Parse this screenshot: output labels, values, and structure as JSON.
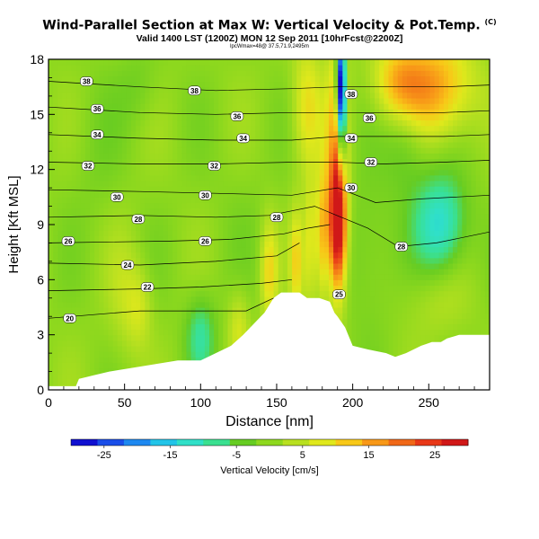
{
  "header": {
    "title": "Wind-Parallel Section at Max W: Vertical Velocity & Pot.Temp.",
    "copyright": "(C)",
    "subtitle": "Valid 1400 LST (1200Z) MON 12 Sep 2011 [10hrFcst@2200Z]",
    "detail": "lpcWmax=48@ 37.5,71.9,2495m"
  },
  "colors": {
    "low": "#1a2ee0",
    "mid": "#66cc22",
    "high": "#e8101c",
    "terrain": "#ffffff"
  },
  "chart_data": {
    "type": "heatmap",
    "title": "Wind-Parallel Section at Max W: Vertical Velocity & Pot.Temp.",
    "xlabel": "Distance [nm]",
    "ylabel": "Height [Kft MSL]",
    "xlim": [
      0,
      290
    ],
    "ylim": [
      0,
      18
    ],
    "xticks": [
      0,
      50,
      100,
      150,
      200,
      250
    ],
    "yticks": [
      0,
      3,
      6,
      9,
      12,
      15,
      18
    ],
    "colorbar": {
      "label": "Vertical Velocity [cm/s]",
      "min": -30,
      "max": 30,
      "ticks": [
        -25,
        -15,
        -5,
        5,
        15,
        25
      ],
      "stops": [
        "#1010d0",
        "#1a4ee8",
        "#1e88f0",
        "#22c4e8",
        "#30e0c8",
        "#3ae090",
        "#66cc22",
        "#8ed81e",
        "#b8e020",
        "#e0e81c",
        "#f8c818",
        "#f89818",
        "#f06818",
        "#e83818",
        "#d01818"
      ]
    },
    "terrain": [
      [
        0,
        0.2
      ],
      [
        18,
        0.2
      ],
      [
        20,
        0.6
      ],
      [
        30,
        0.8
      ],
      [
        40,
        1.0
      ],
      [
        55,
        1.2
      ],
      [
        70,
        1.4
      ],
      [
        85,
        1.6
      ],
      [
        100,
        1.6
      ],
      [
        110,
        2.0
      ],
      [
        120,
        2.4
      ],
      [
        128,
        3.0
      ],
      [
        135,
        3.6
      ],
      [
        142,
        4.2
      ],
      [
        148,
        5.0
      ],
      [
        153,
        5.3
      ],
      [
        165,
        5.3
      ],
      [
        170,
        5.0
      ],
      [
        178,
        5.0
      ],
      [
        185,
        4.8
      ],
      [
        188,
        4.2
      ],
      [
        190,
        4.0
      ],
      [
        195,
        3.4
      ],
      [
        200,
        2.4
      ],
      [
        210,
        2.2
      ],
      [
        222,
        2.0
      ],
      [
        228,
        1.8
      ],
      [
        235,
        2.0
      ],
      [
        245,
        2.4
      ],
      [
        252,
        2.6
      ],
      [
        258,
        2.6
      ],
      [
        262,
        2.8
      ],
      [
        270,
        3.0
      ],
      [
        280,
        3.0
      ],
      [
        290,
        3.0
      ]
    ],
    "velocity_features": [
      {
        "x": 190,
        "y": 9.0,
        "sx": 4,
        "sy": 2.5,
        "w": 32
      },
      {
        "x": 190,
        "y": 13.5,
        "sx": 5,
        "sy": 4.5,
        "w": 14
      },
      {
        "x": 192,
        "y": 16.8,
        "sx": 2.2,
        "sy": 1.8,
        "w": -32
      },
      {
        "x": 193,
        "y": 14.5,
        "sx": 2.0,
        "sy": 2.2,
        "w": -20
      },
      {
        "x": 180,
        "y": 8.5,
        "sx": 3,
        "sy": 2.5,
        "w": 14
      },
      {
        "x": 172,
        "y": 8.0,
        "sx": 3,
        "sy": 2.5,
        "w": 9
      },
      {
        "x": 163,
        "y": 7.0,
        "sx": 3,
        "sy": 2.0,
        "w": 11
      },
      {
        "x": 170,
        "y": 15.5,
        "sx": 7,
        "sy": 2.5,
        "w": 10
      },
      {
        "x": 255,
        "y": 16.5,
        "sx": 18,
        "sy": 2.0,
        "w": 16
      },
      {
        "x": 230,
        "y": 16.8,
        "sx": 12,
        "sy": 1.5,
        "w": 12
      },
      {
        "x": 258,
        "y": 9.0,
        "sx": 12,
        "sy": 2.0,
        "w": -14
      },
      {
        "x": 235,
        "y": 13.5,
        "sx": 10,
        "sy": 2.0,
        "w": -6
      },
      {
        "x": 210,
        "y": 7.5,
        "sx": 12,
        "sy": 3.0,
        "w": -4
      },
      {
        "x": 100,
        "y": 3.0,
        "sx": 7,
        "sy": 1.6,
        "w": -9
      },
      {
        "x": 125,
        "y": 3.4,
        "sx": 5,
        "sy": 1.5,
        "w": 7
      },
      {
        "x": 145,
        "y": 6.5,
        "sx": 4,
        "sy": 2.0,
        "w": 11
      },
      {
        "x": 60,
        "y": 4.5,
        "sx": 6,
        "sy": 1.5,
        "w": 6
      },
      {
        "x": 50,
        "y": 5.0,
        "sx": 8,
        "sy": 2.5,
        "w": 4
      },
      {
        "x": 60,
        "y": 16.5,
        "sx": 10,
        "sy": 1.5,
        "w": -3
      },
      {
        "x": 30,
        "y": 13.0,
        "sx": 12,
        "sy": 3.0,
        "w": -2
      },
      {
        "x": 255,
        "y": 5.0,
        "sx": 15,
        "sy": 1.5,
        "w": 4
      },
      {
        "x": 130,
        "y": 9.5,
        "sx": 20,
        "sy": 3.0,
        "w": -1
      }
    ],
    "theta_contours": [
      {
        "label": "20",
        "pts": [
          [
            0,
            3.9
          ],
          [
            60,
            4.3
          ],
          [
            100,
            4.3
          ],
          [
            130,
            4.3
          ],
          [
            148,
            5.0
          ]
        ]
      },
      {
        "label": "22",
        "pts": [
          [
            0,
            5.4
          ],
          [
            60,
            5.5
          ],
          [
            100,
            5.6
          ],
          [
            140,
            5.8
          ],
          [
            160,
            6.0
          ]
        ]
      },
      {
        "label": "24",
        "pts": [
          [
            0,
            6.9
          ],
          [
            60,
            6.8
          ],
          [
            110,
            7.0
          ],
          [
            150,
            7.3
          ],
          [
            165,
            8.0
          ]
        ]
      },
      {
        "label": "26",
        "pts": [
          [
            0,
            8.0
          ],
          [
            80,
            8.1
          ],
          [
            120,
            8.2
          ],
          [
            155,
            8.5
          ],
          [
            170,
            8.8
          ],
          [
            185,
            9.0
          ]
        ]
      },
      {
        "label": "28",
        "pts": [
          [
            0,
            9.4
          ],
          [
            60,
            9.5
          ],
          [
            110,
            9.4
          ],
          [
            145,
            9.5
          ],
          [
            175,
            10.0
          ],
          [
            210,
            8.8
          ],
          [
            230,
            7.8
          ],
          [
            255,
            8.0
          ],
          [
            290,
            8.6
          ]
        ]
      },
      {
        "label": "30",
        "pts": [
          [
            0,
            10.9
          ],
          [
            60,
            10.8
          ],
          [
            110,
            10.7
          ],
          [
            160,
            10.6
          ],
          [
            190,
            11.0
          ],
          [
            215,
            10.2
          ],
          [
            245,
            10.4
          ],
          [
            290,
            10.6
          ]
        ]
      },
      {
        "label": "32",
        "pts": [
          [
            0,
            12.4
          ],
          [
            60,
            12.3
          ],
          [
            110,
            12.3
          ],
          [
            160,
            12.4
          ],
          [
            190,
            12.4
          ],
          [
            220,
            12.3
          ],
          [
            260,
            12.4
          ],
          [
            290,
            12.5
          ]
        ]
      },
      {
        "label": "34",
        "pts": [
          [
            0,
            13.9
          ],
          [
            60,
            13.7
          ],
          [
            110,
            13.6
          ],
          [
            160,
            13.6
          ],
          [
            190,
            13.8
          ],
          [
            220,
            13.8
          ],
          [
            260,
            13.8
          ],
          [
            290,
            13.9
          ]
        ]
      },
      {
        "label": "36",
        "pts": [
          [
            0,
            15.4
          ],
          [
            60,
            15.1
          ],
          [
            110,
            15.0
          ],
          [
            160,
            15.1
          ],
          [
            190,
            15.1
          ],
          [
            220,
            15.1
          ],
          [
            260,
            15.1
          ],
          [
            290,
            15.2
          ]
        ]
      },
      {
        "label": "38",
        "pts": [
          [
            0,
            16.8
          ],
          [
            60,
            16.5
          ],
          [
            110,
            16.3
          ],
          [
            160,
            16.4
          ],
          [
            190,
            16.5
          ],
          [
            220,
            16.5
          ],
          [
            260,
            16.5
          ],
          [
            290,
            16.6
          ]
        ]
      }
    ],
    "theta_labels": [
      {
        "text": "38",
        "x": 25,
        "y": 16.8
      },
      {
        "text": "38",
        "x": 96,
        "y": 16.3
      },
      {
        "text": "38",
        "x": 199,
        "y": 16.1
      },
      {
        "text": "36",
        "x": 32,
        "y": 15.3
      },
      {
        "text": "36",
        "x": 124,
        "y": 14.9
      },
      {
        "text": "36",
        "x": 211,
        "y": 14.8
      },
      {
        "text": "34",
        "x": 32,
        "y": 13.9
      },
      {
        "text": "34",
        "x": 128,
        "y": 13.7
      },
      {
        "text": "34",
        "x": 199,
        "y": 13.7
      },
      {
        "text": "32",
        "x": 26,
        "y": 12.2
      },
      {
        "text": "32",
        "x": 109,
        "y": 12.2
      },
      {
        "text": "32",
        "x": 212,
        "y": 12.4
      },
      {
        "text": "30",
        "x": 45,
        "y": 10.5
      },
      {
        "text": "30",
        "x": 103,
        "y": 10.6
      },
      {
        "text": "30",
        "x": 199,
        "y": 11.0
      },
      {
        "text": "28",
        "x": 59,
        "y": 9.3
      },
      {
        "text": "28",
        "x": 150,
        "y": 9.4
      },
      {
        "text": "28",
        "x": 232,
        "y": 7.8
      },
      {
        "text": "26",
        "x": 13,
        "y": 8.1
      },
      {
        "text": "26",
        "x": 103,
        "y": 8.1
      },
      {
        "text": "24",
        "x": 52,
        "y": 6.8
      },
      {
        "text": "22",
        "x": 65,
        "y": 5.6
      },
      {
        "text": "20",
        "x": 14,
        "y": 3.9
      },
      {
        "text": "25",
        "x": 191,
        "y": 5.2
      }
    ]
  }
}
